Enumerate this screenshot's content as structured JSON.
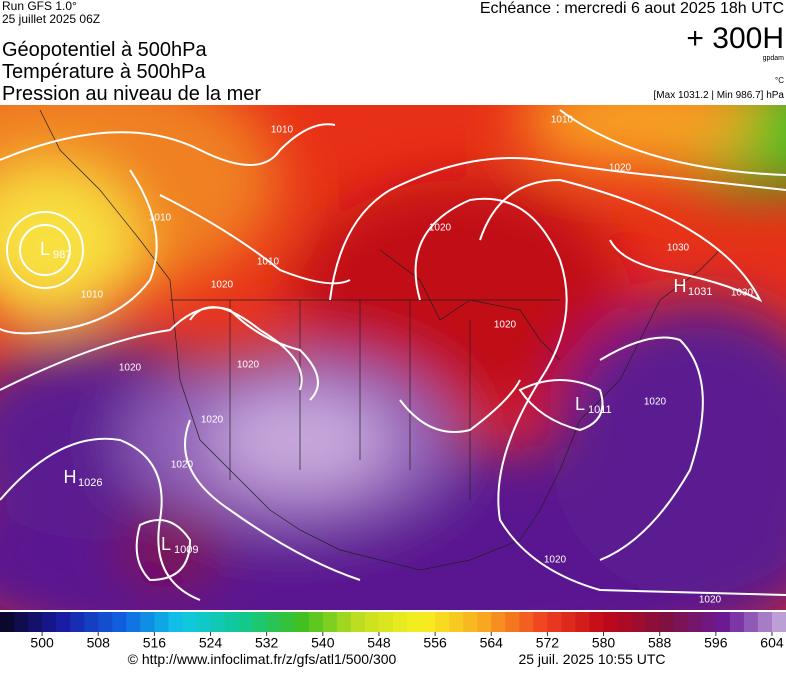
{
  "header": {
    "run": "Run GFS 1.0°",
    "run_date": "25 juillet 2025 06Z",
    "valid": "Echéance : mercredi 6 aout 2025 18h UTC",
    "lead": "+ 300H",
    "unit": "gpdam",
    "temp_unit": "°C",
    "range": "[Max 1031.2 | Min 986.7] hPa",
    "title_lines": [
      "Géopotentiel à 500hPa",
      "Température à 500hPa",
      "Pression au niveau de la mer"
    ]
  },
  "map": {
    "centers": [
      {
        "type": "L",
        "value": 987
      },
      {
        "type": "H",
        "value": 1026
      },
      {
        "type": "L",
        "value": 1009
      },
      {
        "type": "H",
        "value": 1031
      },
      {
        "type": "L",
        "value": 1011
      }
    ],
    "isobar_labels": [
      1010,
      1010,
      1010,
      1010,
      1010,
      1020,
      1020,
      1020,
      1020,
      1020,
      1020,
      1020,
      1020,
      1020,
      1020,
      1020,
      1030,
      1030
    ]
  },
  "colorbar": {
    "lim": [
      494,
      606
    ],
    "ticks": [
      500,
      508,
      516,
      524,
      532,
      540,
      548,
      556,
      564,
      572,
      580,
      588,
      596,
      604
    ],
    "stops": [
      "#0a0420",
      "#1a1aa0",
      "#1060e0",
      "#10c8e8",
      "#10c890",
      "#40c020",
      "#c8e020",
      "#f8f020",
      "#f8a820",
      "#f04020",
      "#c00818",
      "#801040",
      "#6a1a98",
      "#c8b0e0"
    ]
  },
  "footer": {
    "source": "© http://www.infoclimat.fr/z/gfs/atl1/500/300",
    "timestamp": "25 juil. 2025 10:55 UTC"
  }
}
